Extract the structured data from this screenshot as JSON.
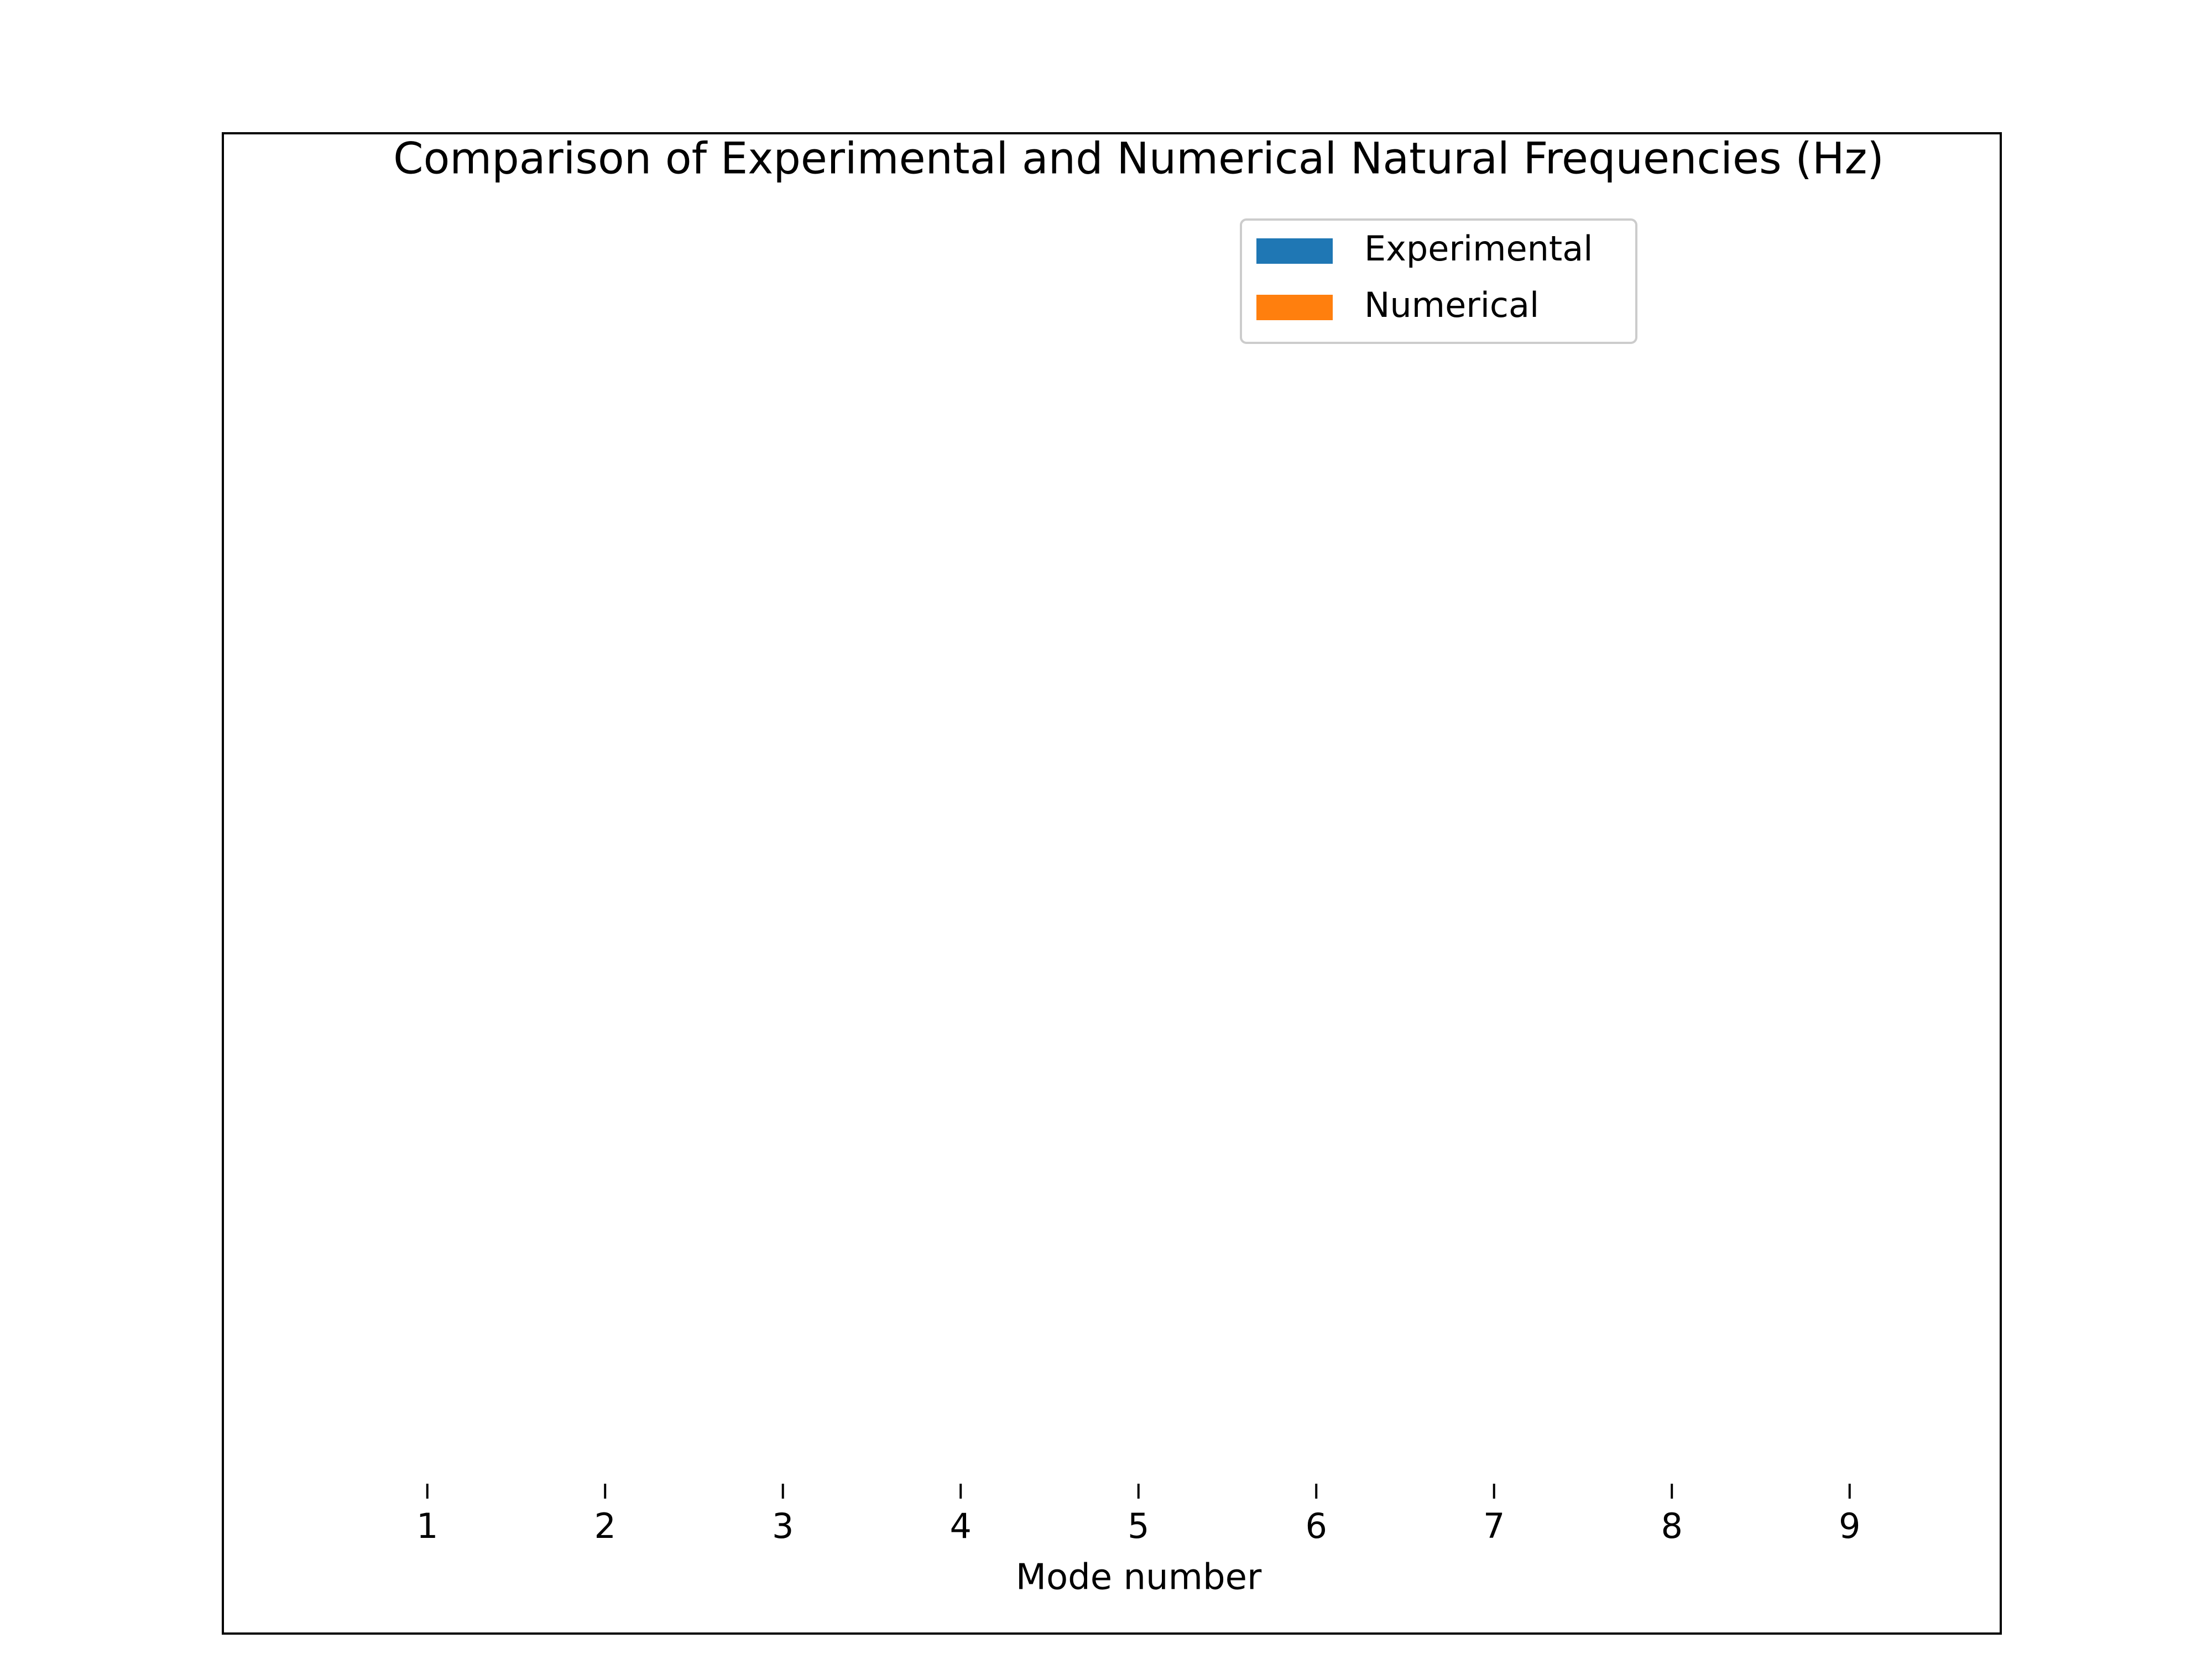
{
  "chart_data": {
    "type": "bar",
    "title": "Comparison of Experimental and Numerical Natural Frequencies (Hz)",
    "x_label": "Mode number",
    "xlim": [
      -0.15,
      9.85
    ],
    "xticks": [
      1,
      2,
      3,
      4,
      5,
      6,
      7,
      8,
      9
    ],
    "series": [
      {
        "name": "Experimental",
        "color": "#1f77b4"
      },
      {
        "name": "Numerical",
        "color": "#ff7f0e"
      }
    ]
  }
}
